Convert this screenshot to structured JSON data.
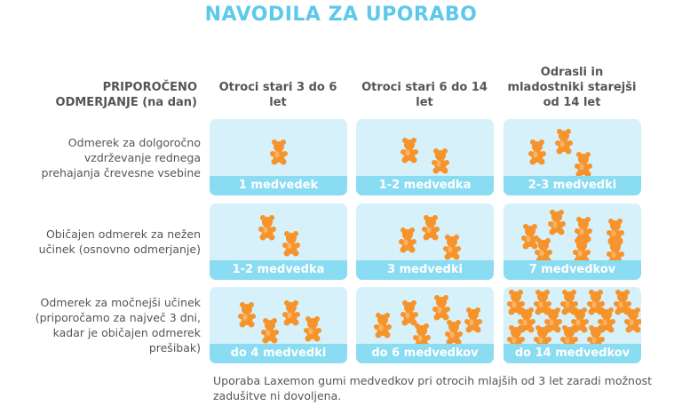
{
  "title": "NAVODILA ZA UPORABO",
  "table": {
    "header": [
      "PRIPOROČENO ODMERJANJE (na dan)",
      "Otroci stari 3 do 6 let",
      "Otroci stari 6 do 14 let",
      "Odrasli in mladostniki starejši od 14 let"
    ],
    "rows": [
      {
        "label": "Odmerek za dolgoročno vzdrževanje rednega prehajanja črevesne vsebine",
        "cells": [
          "1 medvedek",
          "1-2 medvedka",
          "2-3 medvedki"
        ]
      },
      {
        "label": "Običajen odmerek za nežen učinek (osnovno odmerjanje)",
        "cells": [
          "1-2 medvedka",
          "3 medvedki",
          "7 medvedkov"
        ]
      },
      {
        "label": "Odmerek za močnejši učinek (priporočamo za največ 3 dni, kadar je običajen odmerek prešibak)",
        "cells": [
          "do 4 medvedki",
          "do 6 medvedkov",
          "do 14 medvedkov"
        ]
      }
    ]
  },
  "footnote": "Uporaba Laxemon gumi medvedkov pri otrocih mlajših od 3 let zaradi možnost zadušitve ni dovoljena."
}
